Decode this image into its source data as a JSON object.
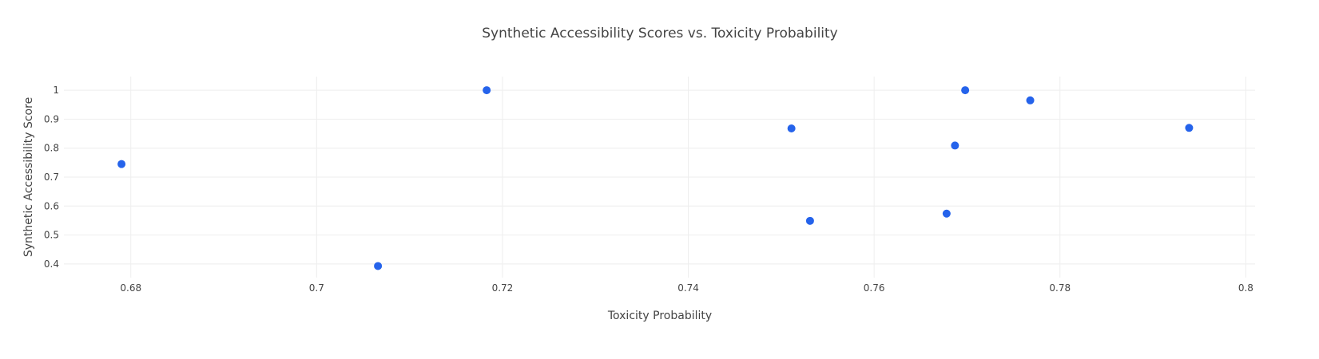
{
  "chart_data": {
    "type": "scatter",
    "title": "Synthetic Accessibility Scores vs. Toxicity Probability",
    "xlabel": "Toxicity Probability",
    "ylabel": "Synthetic Accessibility Score",
    "xlim": [
      0.6728,
      0.801
    ],
    "ylim": [
      0.3529,
      1.0471
    ],
    "x_ticks": [
      0.68,
      0.7,
      0.72,
      0.74,
      0.76,
      0.78,
      0.8
    ],
    "x_tick_labels": [
      "0.68",
      "0.7",
      "0.72",
      "0.74",
      "0.76",
      "0.78",
      "0.8"
    ],
    "y_ticks": [
      0.4,
      0.5,
      0.6,
      0.7,
      0.8,
      0.9,
      1.0
    ],
    "y_tick_labels": [
      "0.4",
      "0.5",
      "0.6",
      "0.7",
      "0.8",
      "0.9",
      "1"
    ],
    "grid": true,
    "legend": false,
    "marker_color": "#2563eb",
    "points": [
      {
        "x": 0.679,
        "y": 0.745
      },
      {
        "x": 0.7066,
        "y": 0.393
      },
      {
        "x": 0.7183,
        "y": 1.0
      },
      {
        "x": 0.7511,
        "y": 0.868
      },
      {
        "x": 0.7531,
        "y": 0.549
      },
      {
        "x": 0.7678,
        "y": 0.574
      },
      {
        "x": 0.7687,
        "y": 0.809
      },
      {
        "x": 0.7698,
        "y": 1.0
      },
      {
        "x": 0.7768,
        "y": 0.965
      },
      {
        "x": 0.7939,
        "y": 0.87
      }
    ]
  }
}
